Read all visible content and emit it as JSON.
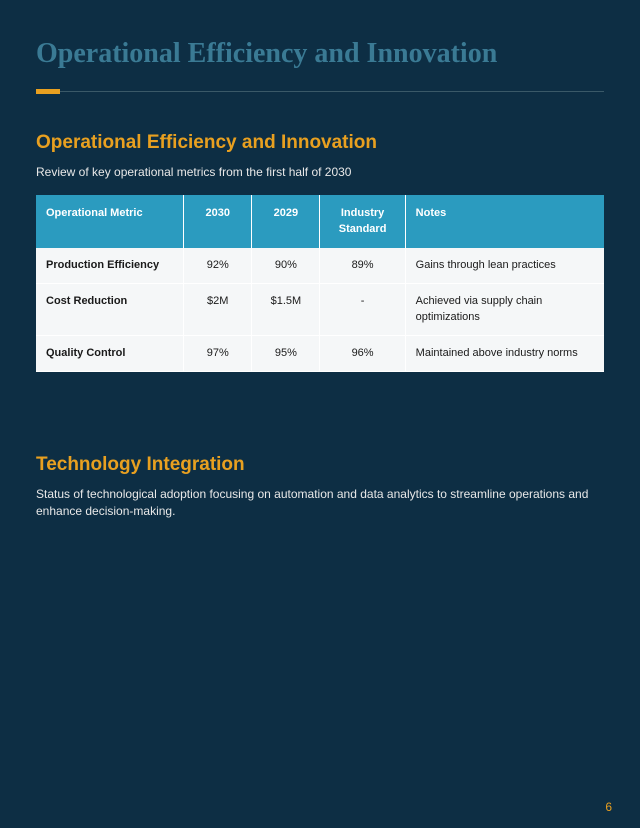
{
  "page": {
    "background_color": "#0d2e44",
    "main_title": "Operational Efficiency and Innovation",
    "page_number": "6"
  },
  "divider": {
    "accent_color": "#e8a020",
    "line_color": "#3a5968"
  },
  "section1": {
    "title": "Operational Efficiency and Innovation",
    "desc": "Review of key operational metrics from the first half of 2030",
    "title_color": "#e8a020"
  },
  "table": {
    "header_bg": "#2b9bbf",
    "row_bg": "#f5f7f8",
    "columns": [
      {
        "label": "Operational Metric",
        "align": "left"
      },
      {
        "label": "2030",
        "align": "center"
      },
      {
        "label": "2029",
        "align": "center"
      },
      {
        "label": "Industry Standard",
        "align": "center"
      },
      {
        "label": "Notes",
        "align": "left"
      }
    ],
    "rows": [
      {
        "metric": "Production Efficiency",
        "y2030": "92%",
        "y2029": "90%",
        "industry": "89%",
        "notes": "Gains through lean practices"
      },
      {
        "metric": "Cost Reduction",
        "y2030": "$2M",
        "y2029": "$1.5M",
        "industry": "-",
        "notes": "Achieved via supply chain optimizations"
      },
      {
        "metric": "Quality Control",
        "y2030": "97%",
        "y2029": "95%",
        "industry": "96%",
        "notes": "Maintained above industry norms"
      }
    ]
  },
  "section2": {
    "title": "Technology Integration",
    "desc": "Status of technological adoption focusing on automation and data analytics to streamline operations and enhance decision-making."
  }
}
